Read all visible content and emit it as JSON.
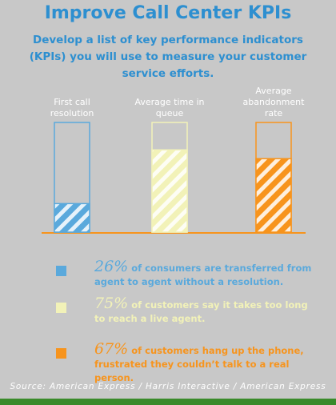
{
  "chart_data": {
    "type": "bar",
    "title": "Improve Call Center KPIs",
    "subtitle": "Develop a list of key performance indicators (KPIs) you will use to measure your customer service efforts.",
    "categories": [
      "First call resolution",
      "Average time in queue",
      "Average abandonment rate"
    ],
    "values": [
      26,
      75,
      67
    ],
    "value_labels": [
      "26%",
      "75%",
      "67%"
    ],
    "colors": [
      "#5aa9dc",
      "#f2f2b8",
      "#f7941d"
    ],
    "statements": [
      "of consumers are transferred from agent to agent without a resolution.",
      "of customers say it takes too long to reach a live agent.",
      "of customers hang up the phone, frustrated they couldn’t talk to a real person."
    ],
    "ylim": [
      0,
      100
    ],
    "source": "Source: American Express / Harris Interactive / American Express"
  }
}
